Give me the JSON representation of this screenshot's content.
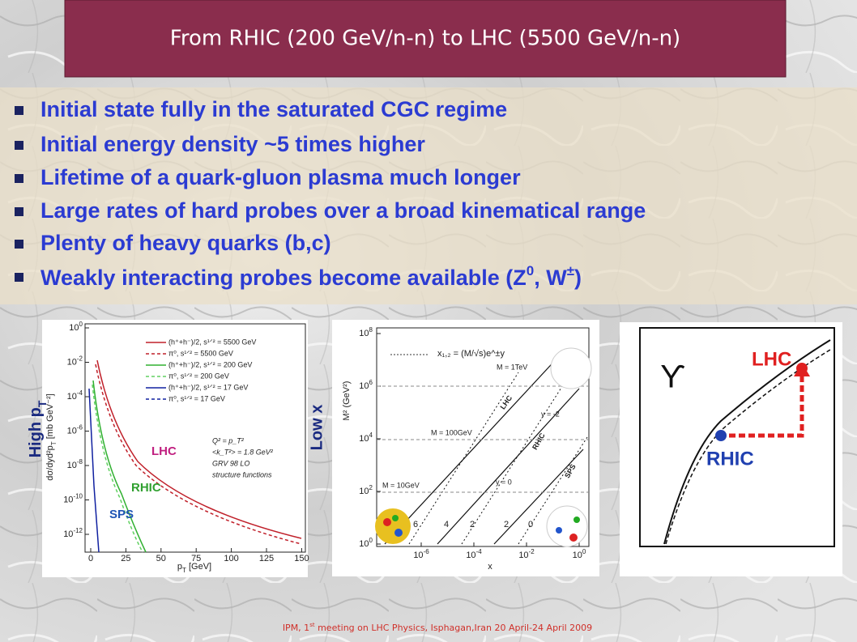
{
  "header": {
    "title": "From RHIC (200 GeV/n-n) to LHC (5500 GeV/n-n)"
  },
  "bullets": [
    "Initial state fully in the saturated CGC regime",
    "Initial energy density ~5 times higher",
    "Lifetime of a quark-gluon plasma much longer",
    "Large rates of hard probes over a broad kinematical range",
    "Plenty of heavy quarks (b,c)"
  ],
  "last_bullet": {
    "text": "Weakly interacting probes become available (Z",
    "sup1": "0",
    "mid": ", W",
    "sup2": "±",
    "end": ")"
  },
  "figure1": {
    "side_label": "High p",
    "side_label_sub": "T",
    "power_base": "10",
    "y_tick_exponents": [
      "0",
      "-2",
      "-4",
      "-6",
      "-8",
      "-10",
      "-12"
    ],
    "y_label": "dσ/dyd²p",
    "y_label_sub": "T",
    "y_label_unit": " [mb GeV⁻²]",
    "x_ticks": [
      "0",
      "25",
      "50",
      "75",
      "100",
      "125",
      "150"
    ],
    "x_label": "p",
    "x_label_sub": "T",
    "x_label_unit": " [GeV]",
    "legend": [
      "(h⁺+h⁻)/2, s¹ᐟ² = 5500 GeV",
      "π⁰, s¹ᐟ² = 5500 GeV",
      "(h⁺+h⁻)/2, s¹ᐟ² = 200 GeV",
      "π⁰, s¹ᐟ² = 200 GeV",
      "(h⁺+h⁻)/2, s¹ᐟ² = 17 GeV",
      "π⁰, s¹ᐟ² = 17 GeV"
    ],
    "notes": [
      "Q² = p_T²",
      "<k_T²> = 1.8 GeV²",
      "GRV 98 LO",
      "structure functions"
    ],
    "curve_labels": [
      "LHC",
      "RHIC",
      "SPS"
    ]
  },
  "figure2": {
    "side_label": "Low x",
    "power_base": "10",
    "y_tick_exponents": [
      "0",
      "2",
      "4",
      "6",
      "8"
    ],
    "x_tick_exponents": [
      "-6",
      "-4",
      "-2",
      "0"
    ],
    "y_label": "M² (GeV²)",
    "x_label": "x",
    "formula": "x₁,₂ = (M/√s)e^±y",
    "mass_labels": [
      "M = 1TeV",
      "M = 100GeV",
      "M = 10GeV"
    ],
    "rapidity_labels": [
      "y = -2",
      "y = 0"
    ],
    "bottom_labels": [
      "6",
      "4",
      "2",
      "2",
      "0"
    ],
    "line_labels": [
      "LHC",
      "RHIC",
      "SPS"
    ]
  },
  "figure3": {
    "symbol": "ϒ",
    "labels": [
      "LHC",
      "RHIC"
    ]
  },
  "footer": {
    "pre": "IPM, 1",
    "sup": "st",
    "post": " meeting on LHC Physics, Isphagan,Iran 20 April-24 April 2009"
  }
}
